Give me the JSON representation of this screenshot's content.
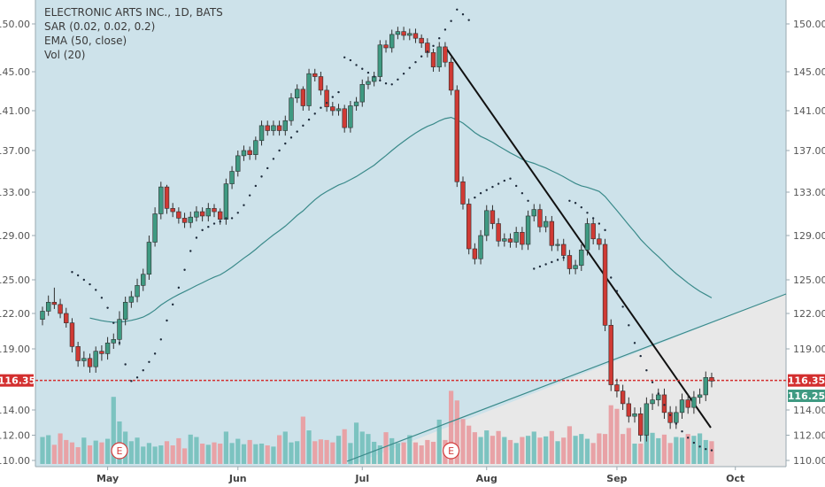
{
  "legend": {
    "title": "ELECTRONIC ARTS INC., 1D, BATS",
    "sar": "SAR (0.02, 0.02, 0.2)",
    "ema": "EMA (50, close)",
    "vol": "Vol (20)"
  },
  "colors": {
    "up": "#3f9a82",
    "down": "#d03a34",
    "vol_up": "#7cc3c0",
    "vol_down": "#e8a2a6",
    "ema": "#3a8a8a",
    "sar": "#1d2a3a",
    "plot_bg": "#cde2ea",
    "lower_bg": "#e8e8e8",
    "trendline": "#111111",
    "support_line": "#3a8a8a",
    "price_line": "#d32f2f",
    "earnings": "#d23b3b"
  },
  "price_tags": {
    "left": "116.35",
    "right_top": "116.35",
    "right_bottom": "116.25"
  },
  "earnings_markers": [
    {
      "label": "E",
      "date": "2018-05-03"
    },
    {
      "label": "E",
      "date": "2018-07-24"
    }
  ],
  "chart_data": {
    "type": "candlestick",
    "title": "ELECTRONIC ARTS INC., 1D, BATS",
    "yticks": [
      110.0,
      112.0,
      114.0,
      116.25,
      119.0,
      122.0,
      125.0,
      129.0,
      133.0,
      137.0,
      141.0,
      145.0,
      150.0
    ],
    "ytick_labels": [
      "110.00",
      "112.00",
      "114.00",
      "116.25",
      "119.00",
      "122.00",
      "125.00",
      "129.00",
      "133.00",
      "137.00",
      "141.00",
      "145.00",
      "150.00"
    ],
    "ylim": [
      109.6,
      151.8
    ],
    "month_labels": [
      {
        "label": "May",
        "date": "2018-05-01"
      },
      {
        "label": "Jun",
        "date": "2018-06-01"
      },
      {
        "label": "Jul",
        "date": "2018-07-02"
      },
      {
        "label": "Aug",
        "date": "2018-08-01"
      },
      {
        "label": "Sep",
        "date": "2018-09-03"
      },
      {
        "label": "Oct",
        "date": "2018-10-01"
      }
    ],
    "dates": [
      "2018-04-16",
      "2018-04-17",
      "2018-04-18",
      "2018-04-19",
      "2018-04-20",
      "2018-04-23",
      "2018-04-24",
      "2018-04-25",
      "2018-04-26",
      "2018-04-27",
      "2018-04-30",
      "2018-05-01",
      "2018-05-02",
      "2018-05-03",
      "2018-05-04",
      "2018-05-07",
      "2018-05-08",
      "2018-05-09",
      "2018-05-10",
      "2018-05-11",
      "2018-05-14",
      "2018-05-15",
      "2018-05-16",
      "2018-05-17",
      "2018-05-18",
      "2018-05-21",
      "2018-05-22",
      "2018-05-23",
      "2018-05-24",
      "2018-05-25",
      "2018-05-29",
      "2018-05-30",
      "2018-05-31",
      "2018-06-01",
      "2018-06-04",
      "2018-06-05",
      "2018-06-06",
      "2018-06-07",
      "2018-06-08",
      "2018-06-11",
      "2018-06-12",
      "2018-06-13",
      "2018-06-14",
      "2018-06-15",
      "2018-06-18",
      "2018-06-19",
      "2018-06-20",
      "2018-06-21",
      "2018-06-22",
      "2018-06-25",
      "2018-06-26",
      "2018-06-27",
      "2018-06-28",
      "2018-06-29",
      "2018-07-02",
      "2018-07-03",
      "2018-07-05",
      "2018-07-06",
      "2018-07-09",
      "2018-07-10",
      "2018-07-11",
      "2018-07-12",
      "2018-07-13",
      "2018-07-16",
      "2018-07-17",
      "2018-07-18",
      "2018-07-19",
      "2018-07-20",
      "2018-07-23",
      "2018-07-24",
      "2018-07-25",
      "2018-07-26",
      "2018-07-27",
      "2018-07-30",
      "2018-07-31",
      "2018-08-01",
      "2018-08-02",
      "2018-08-03",
      "2018-08-06",
      "2018-08-07",
      "2018-08-08",
      "2018-08-09",
      "2018-08-10",
      "2018-08-13",
      "2018-08-14",
      "2018-08-15",
      "2018-08-16",
      "2018-08-17",
      "2018-08-20",
      "2018-08-21",
      "2018-08-22",
      "2018-08-23",
      "2018-08-24",
      "2018-08-27",
      "2018-08-28",
      "2018-08-29",
      "2018-08-30",
      "2018-08-31",
      "2018-09-04",
      "2018-09-05",
      "2018-09-06",
      "2018-09-07",
      "2018-09-10",
      "2018-09-11",
      "2018-09-12",
      "2018-09-13",
      "2018-09-14",
      "2018-09-17",
      "2018-09-18",
      "2018-09-19",
      "2018-09-20",
      "2018-09-21",
      "2018-09-24",
      "2018-09-25"
    ],
    "open": [
      121.5,
      122.2,
      123.0,
      122.8,
      122.0,
      121.2,
      119.2,
      118.0,
      118.2,
      117.5,
      118.8,
      118.6,
      119.5,
      119.8,
      121.5,
      123.0,
      123.5,
      124.5,
      125.5,
      128.4,
      131.0,
      133.5,
      131.5,
      131.2,
      130.6,
      130.2,
      130.7,
      131.2,
      130.8,
      131.5,
      131.2,
      130.5,
      133.8,
      135.0,
      136.5,
      137.0,
      136.6,
      138.0,
      139.5,
      139.0,
      139.5,
      139.0,
      140.0,
      142.3,
      143.2,
      141.5,
      144.8,
      144.5,
      143.1,
      141.4,
      141.0,
      141.2,
      139.3,
      141.5,
      141.9,
      143.7,
      144.0,
      144.5,
      147.8,
      147.5,
      148.9,
      149.2,
      148.8,
      149.0,
      148.5,
      148.0,
      147.0,
      145.5,
      147.6,
      146.0,
      143.1,
      134.0,
      131.9,
      127.8,
      126.9,
      129.0,
      131.3,
      130.1,
      128.5,
      128.7,
      128.4,
      129.3,
      128.2,
      130.8,
      131.4,
      129.8,
      130.3,
      128.1,
      128.2,
      127.2,
      126.0,
      126.3,
      127.7,
      130.1,
      128.7,
      128.2,
      121.0,
      116.0,
      115.5,
      114.5,
      113.5,
      113.7,
      112.0,
      114.5,
      114.8,
      115.2,
      113.8,
      113.0,
      113.8,
      114.8,
      114.2,
      115.0,
      115.2,
      116.6
    ],
    "close": [
      122.2,
      123.0,
      122.8,
      122.0,
      121.2,
      119.2,
      118.0,
      118.2,
      117.5,
      118.8,
      118.6,
      119.5,
      119.8,
      121.5,
      123.0,
      123.5,
      124.5,
      125.5,
      128.4,
      131.0,
      133.5,
      131.5,
      131.2,
      130.6,
      130.2,
      130.7,
      131.2,
      130.8,
      131.5,
      131.2,
      130.5,
      133.8,
      135.0,
      136.5,
      137.0,
      136.6,
      138.0,
      139.5,
      139.0,
      139.5,
      139.0,
      140.0,
      142.3,
      143.2,
      141.5,
      144.8,
      144.5,
      143.1,
      141.4,
      141.0,
      141.2,
      139.3,
      141.5,
      141.9,
      143.7,
      144.0,
      144.5,
      147.8,
      147.5,
      148.9,
      149.2,
      148.8,
      149.0,
      148.5,
      148.0,
      147.0,
      145.5,
      147.6,
      146.0,
      143.1,
      134.0,
      131.9,
      127.8,
      126.9,
      129.0,
      131.3,
      130.1,
      128.5,
      128.7,
      128.4,
      129.3,
      128.2,
      130.8,
      131.4,
      129.8,
      130.3,
      128.1,
      128.2,
      127.2,
      126.0,
      126.3,
      127.7,
      130.1,
      128.7,
      128.2,
      121.0,
      116.0,
      115.5,
      114.5,
      113.5,
      113.7,
      112.0,
      114.5,
      114.8,
      115.2,
      113.8,
      113.0,
      113.8,
      114.8,
      114.2,
      115.0,
      115.2,
      116.6,
      116.3
    ],
    "high": [
      122.6,
      123.6,
      124.3,
      123.3,
      122.5,
      121.6,
      119.6,
      118.8,
      118.6,
      119.2,
      119.3,
      120.0,
      120.3,
      122.2,
      123.5,
      124.0,
      125.1,
      126.0,
      129.0,
      131.6,
      134.0,
      133.7,
      132.0,
      131.6,
      131.1,
      131.2,
      131.7,
      131.6,
      132.0,
      131.9,
      131.5,
      134.3,
      135.5,
      137.0,
      137.5,
      137.4,
      138.4,
      140.0,
      140.0,
      140.0,
      140.0,
      140.5,
      142.8,
      143.7,
      143.5,
      145.3,
      145.3,
      145.0,
      143.6,
      141.9,
      141.7,
      141.6,
      142.0,
      142.4,
      144.2,
      144.5,
      145.0,
      148.3,
      148.3,
      149.4,
      149.7,
      149.7,
      149.5,
      149.5,
      148.9,
      148.5,
      147.4,
      148.1,
      148.1,
      146.5,
      143.6,
      134.5,
      132.4,
      128.3,
      129.5,
      131.8,
      131.8,
      130.6,
      129.2,
      129.2,
      129.8,
      129.8,
      131.3,
      131.9,
      131.9,
      130.8,
      130.8,
      128.7,
      128.7,
      127.7,
      126.8,
      128.2,
      130.6,
      130.6,
      129.2,
      128.7,
      121.5,
      116.5,
      116.0,
      115.0,
      114.2,
      114.2,
      115.0,
      115.3,
      115.7,
      115.7,
      114.3,
      114.3,
      115.3,
      115.3,
      115.5,
      115.7,
      117.1,
      117.0
    ],
    "low": [
      121.0,
      121.8,
      122.4,
      121.6,
      120.8,
      118.7,
      117.5,
      117.5,
      117.0,
      117.0,
      118.0,
      118.1,
      119.0,
      119.3,
      121.0,
      122.5,
      123.0,
      124.0,
      125.0,
      128.0,
      130.5,
      131.0,
      130.7,
      130.1,
      129.7,
      129.7,
      130.3,
      130.3,
      130.3,
      130.7,
      130.0,
      130.0,
      133.3,
      134.5,
      136.0,
      136.1,
      136.1,
      137.5,
      138.5,
      138.5,
      138.5,
      138.5,
      139.5,
      141.8,
      141.0,
      141.0,
      144.0,
      142.6,
      140.9,
      140.5,
      140.5,
      138.8,
      138.8,
      141.0,
      141.4,
      143.2,
      143.5,
      144.0,
      147.0,
      147.0,
      148.4,
      148.3,
      148.3,
      148.0,
      147.5,
      146.5,
      145.0,
      145.0,
      145.5,
      142.6,
      133.5,
      131.4,
      127.3,
      126.4,
      126.4,
      128.5,
      129.6,
      128.0,
      128.0,
      127.9,
      127.9,
      127.7,
      127.7,
      130.3,
      129.3,
      129.3,
      127.6,
      127.6,
      126.7,
      125.5,
      125.5,
      125.8,
      127.2,
      128.2,
      127.7,
      120.5,
      115.5,
      115.0,
      114.0,
      113.0,
      113.0,
      111.5,
      111.5,
      114.0,
      114.3,
      113.3,
      112.5,
      112.5,
      113.3,
      113.7,
      113.7,
      114.5,
      114.7,
      115.8
    ],
    "volume": [
      4.5,
      4.8,
      3.2,
      5.1,
      4.0,
      3.6,
      2.8,
      4.4,
      3.1,
      3.9,
      3.6,
      4.2,
      11.2,
      7.1,
      5.4,
      3.8,
      4.4,
      2.9,
      3.5,
      2.9,
      3.1,
      3.8,
      3.1,
      4.3,
      2.6,
      4.9,
      4.5,
      3.4,
      3.2,
      3.6,
      3.4,
      5.4,
      3.5,
      4.2,
      3.3,
      4.0,
      3.3,
      3.4,
      3.1,
      2.9,
      4.8,
      5.4,
      3.6,
      3.8,
      7.9,
      5.6,
      3.8,
      4.1,
      4.0,
      3.6,
      4.7,
      5.8,
      3.5,
      6.9,
      5.4,
      5.0,
      3.7,
      3.1,
      5.3,
      4.3,
      3.5,
      3.6,
      4.8,
      3.6,
      3.1,
      4.0,
      3.7,
      7.4,
      4.0,
      12.2,
      10.6,
      7.5,
      6.4,
      5.3,
      4.5,
      5.6,
      4.7,
      5.5,
      4.5,
      4.0,
      3.5,
      4.5,
      4.7,
      5.4,
      4.4,
      4.6,
      5.5,
      3.8,
      4.4,
      6.3,
      4.7,
      5.0,
      4.2,
      3.5,
      5.1,
      5.0,
      9.8,
      9.2,
      5.0,
      6.0,
      3.4,
      3.4,
      5.0,
      5.2,
      4.3,
      4.9,
      3.5,
      4.5,
      4.4,
      5.0,
      4.7,
      5.1,
      4.0,
      3.8
    ],
    "sar": [
      null,
      null,
      null,
      null,
      null,
      125.7,
      125.4,
      125.0,
      124.6,
      124.1,
      123.4,
      122.5,
      121.2,
      119.5,
      117.7,
      116.3,
      116.6,
      117.2,
      117.9,
      118.6,
      119.8,
      121.4,
      122.8,
      124.3,
      125.9,
      127.6,
      128.8,
      129.5,
      129.8,
      130.1,
      130.3,
      130.6,
      130.6,
      131.1,
      131.8,
      132.7,
      133.6,
      134.5,
      135.3,
      136.2,
      137.0,
      137.7,
      138.3,
      138.9,
      139.5,
      140.1,
      140.7,
      141.3,
      141.8,
      142.4,
      142.9,
      146.5,
      146.2,
      145.7,
      145.3,
      144.9,
      144.5,
      144.1,
      143.8,
      143.7,
      144.2,
      144.8,
      145.4,
      146.0,
      146.6,
      147.1,
      147.7,
      148.5,
      149.4,
      150.3,
      151.5,
      151.0,
      150.4,
      132.5,
      132.9,
      133.2,
      133.5,
      133.8,
      134.1,
      134.3,
      133.6,
      132.9,
      132.2,
      126.0,
      126.2,
      126.4,
      126.6,
      126.8,
      127.0,
      132.2,
      132.0,
      131.6,
      131.1,
      130.6,
      130.1,
      129.5,
      125.2,
      124.0,
      122.6,
      121.0,
      119.5,
      118.4,
      117.2,
      116.2,
      115.3,
      114.4,
      113.6,
      112.9,
      112.3,
      111.8,
      111.4,
      111.1,
      110.9,
      110.8
    ]
  }
}
